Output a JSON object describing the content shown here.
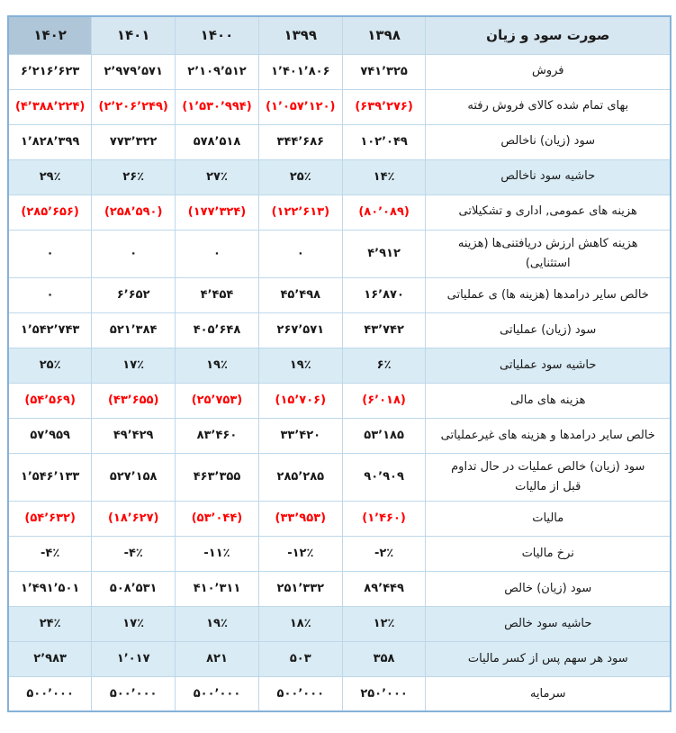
{
  "colors": {
    "page_bg": "#ffffff",
    "header_bg": "#d7e7f1",
    "selected_year_bg": "#aec6d8",
    "highlight_row_bg": "#d9ebf4",
    "negative_text": "#ff0000",
    "text": "#1a1a1a",
    "grid_border": "#bed8ea",
    "outer_border": "#85b2d8"
  },
  "table": {
    "title": "صورت سود و زیان",
    "years": [
      "۱۳۹۸",
      "۱۳۹۹",
      "۱۴۰۰",
      "۱۴۰۱",
      "۱۴۰۲"
    ],
    "highlighted_year": "۱۴۰۲",
    "rows": [
      {
        "label": "فروش",
        "style": "normal",
        "values": [
          "۷۴۱٬۳۲۵",
          "۱٬۴۰۱٬۸۰۶",
          "۲٬۱۰۹٬۵۱۲",
          "۲٬۹۷۹٬۵۷۱",
          "۶٬۲۱۶٬۶۲۳"
        ]
      },
      {
        "label": "بهای تمام شده کالای فروش رفته",
        "style": "negative",
        "values": [
          "(۶۳۹٬۲۷۶)",
          "(۱٬۰۵۷٬۱۲۰)",
          "(۱٬۵۳۰٬۹۹۴)",
          "(۲٬۲۰۶٬۲۴۹)",
          "(۴٬۳۸۸٬۲۲۴)"
        ]
      },
      {
        "label": "سود (زیان) ناخالص",
        "style": "normal",
        "values": [
          "۱۰۲٬۰۴۹",
          "۳۴۴٬۶۸۶",
          "۵۷۸٬۵۱۸",
          "۷۷۳٬۳۲۲",
          "۱٬۸۲۸٬۳۹۹"
        ]
      },
      {
        "label": "حاشیه سود ناخالص",
        "style": "highlight",
        "values": [
          "۱۴٪",
          "۲۵٪",
          "۲۷٪",
          "۲۶٪",
          "۲۹٪"
        ]
      },
      {
        "label": "هزینه های عمومی, اداری و تشکیلاتی",
        "style": "negative",
        "values": [
          "(۸۰٬۰۸۹)",
          "(۱۲۲٬۶۱۳)",
          "(۱۷۷٬۳۲۴)",
          "(۲۵۸٬۵۹۰)",
          "(۲۸۵٬۶۵۶)"
        ]
      },
      {
        "label": "هزینه کاهش ارزش دریافتنی‌ها (هزینه استثنایی)",
        "style": "normal",
        "values": [
          "۴٬۹۱۲",
          "۰",
          "۰",
          "۰",
          "۰"
        ]
      },
      {
        "label": "خالص سایر درامدها (هزینه ها) ی عملیاتی",
        "style": "normal",
        "values": [
          "۱۶٬۸۷۰",
          "۴۵٬۴۹۸",
          "۴٬۴۵۴",
          "۶٬۶۵۲",
          "۰"
        ]
      },
      {
        "label": "سود (زیان) عملیاتی",
        "style": "normal",
        "values": [
          "۴۳٬۷۴۲",
          "۲۶۷٬۵۷۱",
          "۴۰۵٬۶۴۸",
          "۵۲۱٬۳۸۴",
          "۱٬۵۴۲٬۷۴۳"
        ]
      },
      {
        "label": "حاشیه سود عملیاتی",
        "style": "highlight",
        "values": [
          "۶٪",
          "۱۹٪",
          "۱۹٪",
          "۱۷٪",
          "۲۵٪"
        ]
      },
      {
        "label": "هزینه های مالی",
        "style": "negative",
        "values": [
          "(۶٬۰۱۸)",
          "(۱۵٬۷۰۶)",
          "(۲۵٬۷۵۳)",
          "(۴۳٬۶۵۵)",
          "(۵۴٬۵۶۹)"
        ]
      },
      {
        "label": "خالص سایر درامدها و هزینه های غیرعملیاتی",
        "style": "normal",
        "values": [
          "۵۳٬۱۸۵",
          "۳۳٬۴۲۰",
          "۸۳٬۴۶۰",
          "۴۹٬۴۲۹",
          "۵۷٬۹۵۹"
        ]
      },
      {
        "label": "سود (زیان) خالص عملیات در حال تداوم قبل از مالیات",
        "style": "normal",
        "values": [
          "۹۰٬۹۰۹",
          "۲۸۵٬۲۸۵",
          "۴۶۳٬۳۵۵",
          "۵۲۷٬۱۵۸",
          "۱٬۵۴۶٬۱۳۳"
        ]
      },
      {
        "label": "مالیات",
        "style": "negative",
        "values": [
          "(۱٬۴۶۰)",
          "(۳۳٬۹۵۳)",
          "(۵۳٬۰۴۴)",
          "(۱۸٬۶۲۷)",
          "(۵۴٬۶۳۲)"
        ]
      },
      {
        "label": "نرخ مالیات",
        "style": "normal",
        "values": [
          "-۲٪",
          "-۱۲٪",
          "-۱۱٪",
          "-۴٪",
          "-۴٪"
        ]
      },
      {
        "label": "سود (زیان) خالص",
        "style": "normal",
        "values": [
          "۸۹٬۴۴۹",
          "۲۵۱٬۳۳۲",
          "۴۱۰٬۳۱۱",
          "۵۰۸٬۵۳۱",
          "۱٬۴۹۱٬۵۰۱"
        ]
      },
      {
        "label": "حاشیه سود خالص",
        "style": "highlight",
        "values": [
          "۱۲٪",
          "۱۸٪",
          "۱۹٪",
          "۱۷٪",
          "۲۴٪"
        ]
      },
      {
        "label": "سود هر سهم پس از کسر مالیات",
        "style": "highlight",
        "values": [
          "۳۵۸",
          "۵۰۳",
          "۸۲۱",
          "۱٬۰۱۷",
          "۲٬۹۸۳"
        ]
      },
      {
        "label": "سرمایه",
        "style": "normal",
        "values": [
          "۲۵۰٬۰۰۰",
          "۵۰۰٬۰۰۰",
          "۵۰۰٬۰۰۰",
          "۵۰۰٬۰۰۰",
          "۵۰۰٬۰۰۰"
        ]
      }
    ]
  }
}
